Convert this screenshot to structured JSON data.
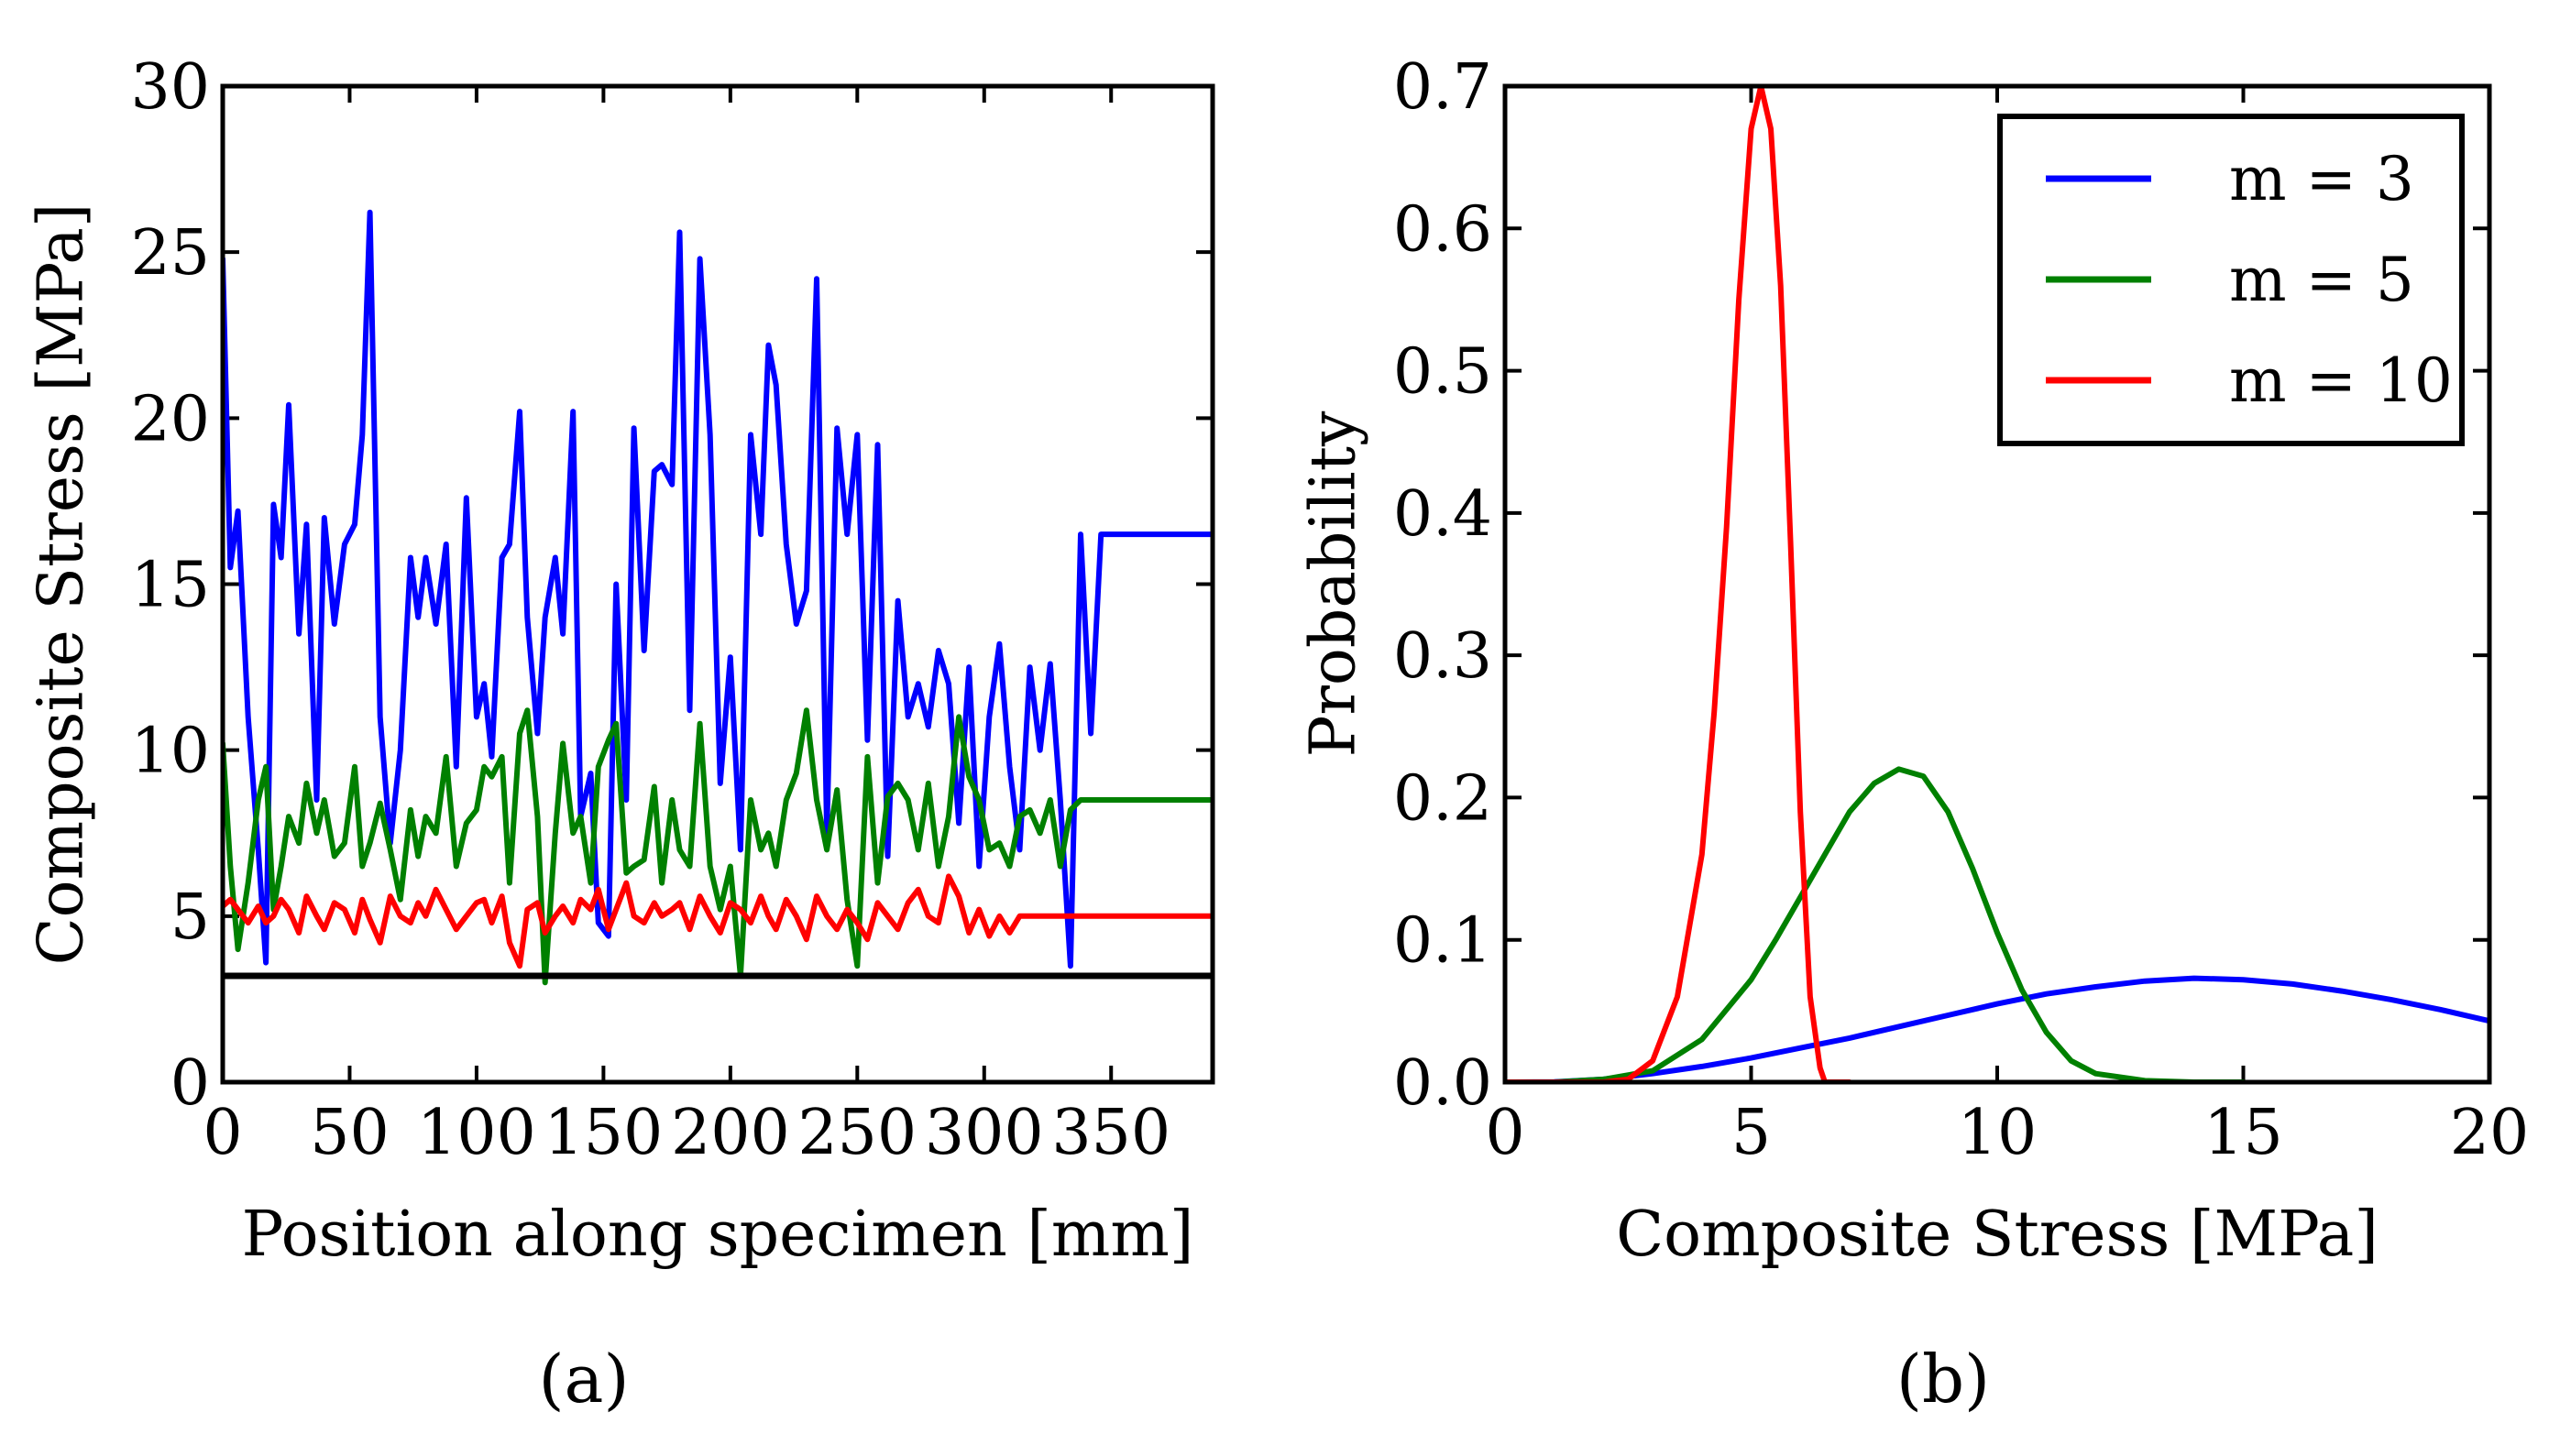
{
  "chart_data": [
    {
      "type": "line",
      "panel": "(a)",
      "xlabel": "Position along specimen [mm]",
      "ylabel": "Composite Stress [MPa]",
      "xlim": [
        0,
        390
      ],
      "ylim": [
        0,
        30
      ],
      "xticks": [
        0,
        50,
        100,
        150,
        200,
        250,
        300,
        350
      ],
      "yticks": [
        0,
        5,
        10,
        15,
        20,
        25,
        30
      ],
      "grid": false,
      "reference_line": {
        "y": 3.2,
        "color": "#000000"
      },
      "series": [
        {
          "color": "#0000ff",
          "x": [
            0,
            3,
            6,
            10,
            14,
            17,
            20,
            23,
            26,
            30,
            33,
            37,
            40,
            44,
            48,
            52,
            55,
            58,
            62,
            66,
            70,
            74,
            77,
            80,
            84,
            88,
            92,
            96,
            100,
            103,
            106,
            110,
            113,
            117,
            120,
            124,
            127,
            131,
            134,
            138,
            141,
            145,
            148,
            152,
            155,
            159,
            162,
            166,
            170,
            173,
            177,
            180,
            184,
            188,
            192,
            196,
            200,
            204,
            208,
            212,
            215,
            218,
            222,
            226,
            230,
            234,
            238,
            242,
            246,
            250,
            254,
            258,
            262,
            266,
            270,
            274,
            278,
            282,
            286,
            290,
            294,
            298,
            302,
            306,
            310,
            314,
            318,
            322,
            326,
            330,
            334,
            338,
            342,
            346,
            350,
            354,
            358,
            362,
            366,
            370,
            374,
            378,
            382,
            386,
            390
          ],
          "y": [
            24.8,
            15.5,
            17.2,
            11,
            7,
            3.6,
            17.4,
            15.8,
            20.4,
            13.5,
            16.8,
            8.5,
            17.0,
            13.8,
            16.2,
            16.8,
            19.5,
            26.2,
            11,
            7.2,
            10,
            15.8,
            14.0,
            15.8,
            13.8,
            16.2,
            9.5,
            17.6,
            11,
            12,
            9.8,
            15.8,
            16.2,
            20.2,
            14,
            10.5,
            14,
            15.8,
            13.5,
            20.2,
            8,
            9.3,
            4.8,
            4.4,
            15,
            8.5,
            19.7,
            13,
            18.4,
            18.6,
            18.0,
            25.6,
            11.2,
            24.8,
            19.5,
            9.0,
            12.8,
            7.0,
            19.5,
            16.5,
            22.2,
            21.0,
            16.2,
            13.8,
            14.8,
            24.2,
            7.5,
            19.7,
            16.5,
            19.5,
            10.3,
            19.2,
            6.8,
            14.5,
            11,
            12,
            10.7,
            13.0,
            12,
            7.8,
            12.5,
            6.5,
            11,
            13.2,
            9.5,
            7.0,
            12.5,
            10,
            12.6,
            8.5,
            3.5,
            16.5,
            10.5,
            16.5,
            16.5,
            16.5,
            16.5,
            16.5,
            16.5,
            16.5,
            16.5,
            16.5,
            16.5,
            16.5,
            16.5
          ]
        },
        {
          "color": "#008000",
          "x": [
            0,
            3,
            6,
            10,
            14,
            17,
            20,
            23,
            26,
            30,
            33,
            37,
            40,
            44,
            48,
            52,
            55,
            58,
            62,
            66,
            70,
            74,
            77,
            80,
            84,
            88,
            92,
            96,
            100,
            103,
            106,
            110,
            113,
            117,
            120,
            124,
            127,
            131,
            134,
            138,
            141,
            145,
            148,
            152,
            155,
            159,
            162,
            166,
            170,
            173,
            177,
            180,
            184,
            188,
            192,
            196,
            200,
            204,
            208,
            212,
            215,
            218,
            222,
            226,
            230,
            234,
            238,
            242,
            246,
            250,
            254,
            258,
            262,
            266,
            270,
            274,
            278,
            282,
            286,
            290,
            294,
            298,
            302,
            306,
            310,
            314,
            318,
            322,
            326,
            330,
            334,
            338,
            342,
            346,
            350,
            354,
            358,
            362,
            366,
            370,
            374,
            378,
            382,
            386,
            390
          ],
          "y": [
            10.2,
            6.5,
            4.0,
            6.0,
            8.5,
            9.5,
            5.2,
            6.5,
            8.0,
            7.2,
            9.0,
            7.5,
            8.5,
            6.8,
            7.2,
            9.5,
            6.5,
            7.2,
            8.4,
            7.0,
            5.5,
            8.2,
            6.8,
            8.0,
            7.5,
            9.8,
            6.5,
            7.8,
            8.2,
            9.5,
            9.2,
            9.8,
            6.0,
            10.5,
            11.2,
            8.0,
            3.0,
            7.5,
            10.2,
            7.5,
            8.0,
            6.0,
            9.5,
            10.3,
            10.8,
            6.3,
            6.5,
            6.7,
            8.9,
            6.0,
            8.5,
            7.0,
            6.5,
            10.8,
            6.5,
            5.2,
            6.5,
            3.2,
            8.5,
            7.0,
            7.5,
            6.5,
            8.5,
            9.3,
            11.2,
            8.5,
            7.0,
            8.8,
            5.5,
            3.5,
            9.8,
            6.0,
            8.6,
            9.0,
            8.5,
            7.0,
            9.0,
            6.5,
            8.0,
            11.0,
            9.2,
            8.5,
            7.0,
            7.2,
            6.5,
            8.0,
            8.2,
            7.5,
            8.5,
            6.5,
            8.2,
            8.5,
            8.5,
            8.5,
            8.5,
            8.5,
            8.5,
            8.5,
            8.5,
            8.5,
            8.5,
            8.5,
            8.5,
            8.5,
            8.5
          ]
        },
        {
          "color": "#ff0000",
          "x": [
            0,
            3,
            6,
            10,
            14,
            17,
            20,
            23,
            26,
            30,
            33,
            37,
            40,
            44,
            48,
            52,
            55,
            58,
            62,
            66,
            70,
            74,
            77,
            80,
            84,
            88,
            92,
            96,
            100,
            103,
            106,
            110,
            113,
            117,
            120,
            124,
            127,
            131,
            134,
            138,
            141,
            145,
            148,
            152,
            155,
            159,
            162,
            166,
            170,
            173,
            177,
            180,
            184,
            188,
            192,
            196,
            200,
            204,
            208,
            212,
            215,
            218,
            222,
            226,
            230,
            234,
            238,
            242,
            246,
            250,
            254,
            258,
            262,
            266,
            270,
            274,
            278,
            282,
            286,
            290,
            294,
            298,
            302,
            306,
            310,
            314,
            318,
            322,
            326,
            330,
            334,
            338,
            342,
            346,
            350,
            354,
            358,
            362,
            366,
            370,
            374,
            378,
            382,
            386,
            390
          ],
          "y": [
            5.3,
            5.5,
            5.2,
            4.8,
            5.3,
            4.8,
            5.0,
            5.5,
            5.2,
            4.5,
            5.6,
            5.0,
            4.6,
            5.4,
            5.2,
            4.5,
            5.5,
            4.9,
            4.2,
            5.6,
            5.0,
            4.8,
            5.4,
            5.0,
            5.8,
            5.2,
            4.6,
            5.0,
            5.4,
            5.5,
            4.8,
            5.6,
            4.2,
            3.5,
            5.2,
            5.4,
            4.5,
            5.0,
            5.3,
            4.8,
            5.5,
            5.2,
            5.8,
            4.6,
            5.2,
            6.0,
            5.0,
            4.8,
            5.4,
            5.0,
            5.2,
            5.4,
            4.6,
            5.6,
            5.0,
            4.5,
            5.4,
            5.2,
            4.8,
            5.6,
            5.0,
            4.6,
            5.5,
            5.0,
            4.3,
            5.6,
            5.0,
            4.6,
            5.2,
            4.8,
            4.3,
            5.4,
            5.0,
            4.6,
            5.4,
            5.8,
            5.0,
            4.8,
            6.2,
            5.6,
            4.5,
            5.2,
            4.4,
            5.0,
            4.5,
            5.0,
            5.0,
            5.0,
            5.0,
            5.0,
            5.0,
            5.0,
            5.0,
            5.0,
            5.0,
            5.0,
            5.0,
            5.0,
            5.0,
            5.0,
            5.0,
            5.0,
            5.0,
            5.0,
            5.0
          ]
        }
      ]
    },
    {
      "type": "line",
      "panel": "(b)",
      "xlabel": "Composite Stress [MPa]",
      "ylabel": "Probability",
      "xlim": [
        0,
        20
      ],
      "ylim": [
        0.0,
        0.7
      ],
      "xticks": [
        0,
        5,
        10,
        15,
        20
      ],
      "yticks": [
        0.0,
        0.1,
        0.2,
        0.3,
        0.4,
        0.5,
        0.6,
        0.7
      ],
      "grid": false,
      "legend_position": "top-right",
      "series": [
        {
          "name": "m = 3",
          "color": "#0000ff",
          "x": [
            0,
            1,
            2,
            3,
            4,
            5,
            6,
            7,
            8,
            9,
            10,
            11,
            12,
            13,
            14,
            15,
            16,
            17,
            18,
            19,
            20
          ],
          "y": [
            0.0,
            0.0002,
            0.002,
            0.006,
            0.011,
            0.017,
            0.024,
            0.031,
            0.039,
            0.047,
            0.055,
            0.062,
            0.067,
            0.071,
            0.073,
            0.072,
            0.069,
            0.064,
            0.058,
            0.051,
            0.043
          ]
        },
        {
          "name": "m = 5",
          "color": "#008000",
          "x": [
            0,
            1,
            2,
            3,
            4,
            5,
            5.5,
            6,
            6.5,
            7,
            7.5,
            8,
            8.5,
            9,
            9.5,
            10,
            10.5,
            11,
            11.5,
            12,
            13,
            14,
            15
          ],
          "y": [
            0.0,
            0.0,
            0.002,
            0.008,
            0.03,
            0.072,
            0.1,
            0.13,
            0.16,
            0.19,
            0.21,
            0.22,
            0.215,
            0.19,
            0.15,
            0.105,
            0.065,
            0.035,
            0.015,
            0.006,
            0.001,
            0.0,
            0.0
          ]
        },
        {
          "name": "m = 10",
          "color": "#ff0000",
          "x": [
            0,
            2,
            2.5,
            3,
            3.5,
            4,
            4.25,
            4.5,
            4.75,
            5,
            5.2,
            5.4,
            5.6,
            5.8,
            6,
            6.2,
            6.4,
            6.5,
            7
          ],
          "y": [
            0.0,
            0.0,
            0.002,
            0.015,
            0.06,
            0.16,
            0.26,
            0.39,
            0.55,
            0.67,
            0.7,
            0.67,
            0.56,
            0.38,
            0.19,
            0.06,
            0.01,
            0.0,
            0.0
          ]
        }
      ]
    }
  ],
  "captions": {
    "a": "(a)",
    "b": "(b)"
  }
}
